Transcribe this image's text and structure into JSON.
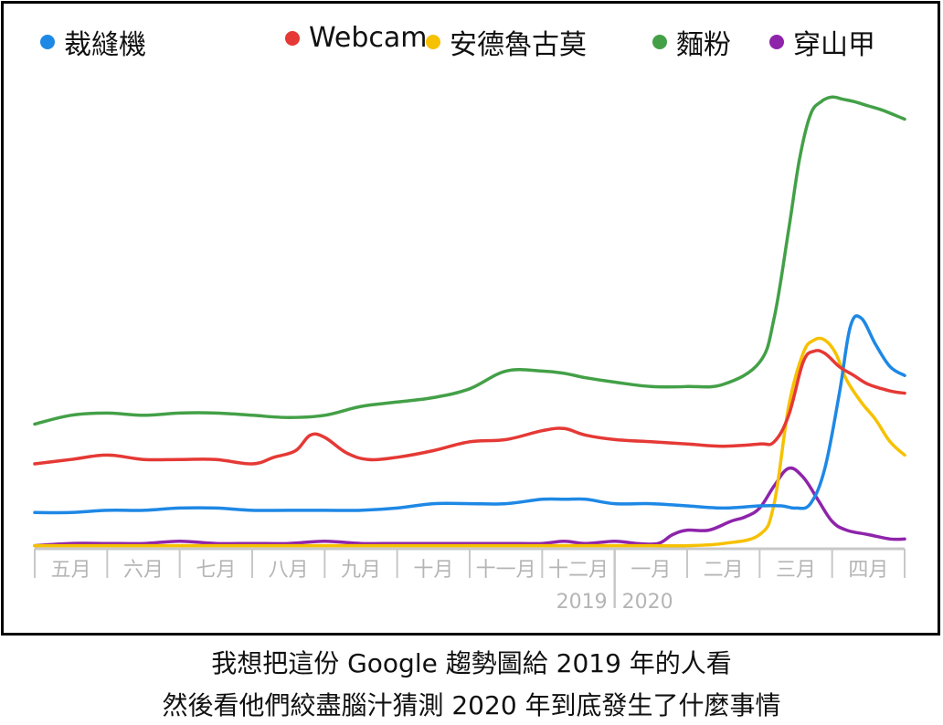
{
  "legend": [
    {
      "label": "裁縫機",
      "color": "#1e88e5"
    },
    {
      "label": "Webcam",
      "color": "#e53935"
    },
    {
      "label": "安德魯古莫",
      "color": "#f6c100"
    },
    {
      "label": "麵粉",
      "color": "#43a047"
    },
    {
      "label": "穿山甲",
      "color": "#8e24aa"
    }
  ],
  "caption": {
    "line1": "我想把這份 Google 趨勢圖給 2019 年的人看",
    "line2": "然後看他們絞盡腦汁猜測 2020 年到底發生了什麼事情"
  },
  "chart_data": {
    "type": "line",
    "x_labels": [
      "五月",
      "六月",
      "七月",
      "八月",
      "九月",
      "十月",
      "十一月",
      "十二月",
      "一月",
      "二月",
      "三月",
      "四月"
    ],
    "year_labels": [
      "2019",
      "2020"
    ],
    "x_range": [
      0,
      12
    ],
    "ylim": [
      0,
      100
    ],
    "grid": false,
    "legend_position": "top",
    "series": [
      {
        "name": "裁縫機",
        "color": "#1e88e5",
        "x": [
          0,
          0.5,
          1,
          1.5,
          2,
          2.5,
          3,
          3.5,
          4,
          4.5,
          5,
          5.5,
          6,
          6.5,
          7,
          7.3,
          7.6,
          8,
          8.5,
          9,
          9.5,
          10,
          10.3,
          10.5,
          10.7,
          10.9,
          11.1,
          11.25,
          11.4,
          11.6,
          11.8,
          12
        ],
        "y": [
          8,
          8,
          8.5,
          8.5,
          9,
          9,
          8.5,
          8.5,
          8.5,
          8.5,
          9,
          10,
          10,
          10,
          11,
          11,
          11,
          10,
          10,
          9.5,
          9,
          9.5,
          9.5,
          9,
          10,
          18,
          35,
          50,
          52,
          46,
          41,
          39
        ]
      },
      {
        "name": "Webcam",
        "color": "#e53935",
        "x": [
          0,
          0.5,
          1,
          1.5,
          2,
          2.5,
          3,
          3.3,
          3.6,
          3.8,
          4,
          4.3,
          4.6,
          5,
          5.5,
          6,
          6.5,
          7,
          7.3,
          7.6,
          8,
          8.5,
          9,
          9.5,
          10,
          10.2,
          10.4,
          10.6,
          10.75,
          10.9,
          11.1,
          11.3,
          11.5,
          11.8,
          12
        ],
        "y": [
          19,
          20,
          21,
          20,
          20,
          20,
          19,
          20.5,
          22,
          25.5,
          25,
          21.5,
          20,
          20.5,
          22,
          24,
          24.5,
          26.5,
          27,
          25.5,
          24.5,
          24,
          23.5,
          23,
          23.5,
          24,
          30,
          42,
          44.5,
          44,
          41,
          39,
          37,
          35.5,
          35
        ]
      },
      {
        "name": "安德魯古莫",
        "color": "#f6c100",
        "x": [
          0,
          1,
          2,
          3,
          4,
          5,
          6,
          7,
          8,
          8.5,
          9,
          9.5,
          10,
          10.2,
          10.4,
          10.6,
          10.75,
          10.9,
          11.05,
          11.2,
          11.4,
          11.6,
          11.8,
          12
        ],
        "y": [
          0.5,
          0.5,
          0.5,
          0.5,
          0.5,
          0.5,
          0.5,
          0.5,
          0.5,
          0.5,
          0.5,
          1,
          3,
          10,
          32,
          44,
          47,
          47,
          44,
          38,
          33,
          29,
          24,
          21
        ]
      },
      {
        "name": "麵粉",
        "color": "#43a047",
        "x": [
          0,
          0.5,
          1,
          1.5,
          2,
          2.5,
          3,
          3.5,
          4,
          4.5,
          5,
          5.5,
          6,
          6.5,
          7,
          7.3,
          7.6,
          8,
          8.5,
          9,
          9.5,
          10,
          10.2,
          10.4,
          10.55,
          10.7,
          10.85,
          11,
          11.15,
          11.3,
          11.5,
          11.7,
          12
        ],
        "y": [
          28,
          30,
          30.5,
          30,
          30.5,
          30.5,
          30,
          29.5,
          30,
          32,
          33,
          34,
          36,
          40,
          40,
          39.5,
          38.5,
          37.5,
          36.5,
          36.5,
          37,
          42,
          52,
          72,
          88,
          98,
          101,
          102,
          101.5,
          101,
          100,
          99,
          97
        ]
      },
      {
        "name": "穿山甲",
        "color": "#8e24aa",
        "x": [
          0,
          0.5,
          1,
          1.5,
          2,
          2.5,
          3,
          3.5,
          4,
          4.5,
          5,
          5.5,
          6,
          6.5,
          7,
          7.3,
          7.6,
          8,
          8.3,
          8.6,
          8.8,
          9,
          9.3,
          9.6,
          9.8,
          10,
          10.2,
          10.4,
          10.6,
          10.8,
          11,
          11.2,
          11.5,
          11.8,
          12
        ],
        "y": [
          0.5,
          1,
          1,
          1,
          1.5,
          1,
          1,
          1,
          1.5,
          1,
          1,
          1,
          1,
          1,
          1,
          1.5,
          1,
          1.5,
          1,
          1,
          3,
          4,
          4,
          6,
          7,
          9,
          14,
          18,
          16,
          11,
          6,
          4,
          3,
          2,
          2
        ]
      }
    ]
  }
}
